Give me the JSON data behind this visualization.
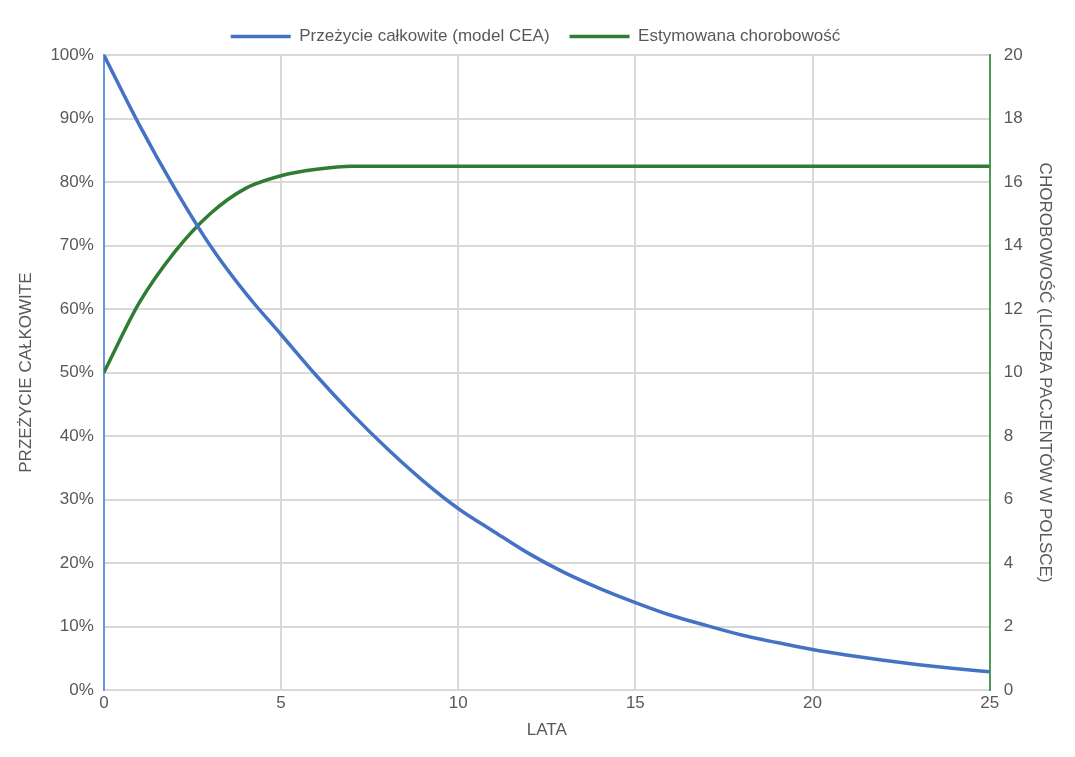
{
  "chart_data": {
    "type": "line",
    "xlabel": "LATA",
    "ylabel": "PRZEŻYCIE CAŁKOWITE",
    "y2label": "CHOROBOWOŚĆ (LICZBA PACJENTÓW W POLSCE)",
    "x": [
      0,
      1,
      2,
      3,
      4,
      5,
      6,
      7,
      8,
      9,
      10,
      11,
      12,
      13,
      14,
      15,
      16,
      17,
      18,
      19,
      20,
      21,
      22,
      23,
      24,
      25
    ],
    "series": [
      {
        "name": "Przeżycie całkowite (model CEA)",
        "color": "#4472c4",
        "values": [
          100,
          89,
          79,
          70,
          62.5,
          56,
          49.5,
          43.5,
          38,
          33,
          28.6,
          25,
          21.5,
          18.5,
          16,
          13.8,
          11.8,
          10.2,
          8.7,
          7.5,
          6.4,
          5.5,
          4.7,
          4,
          3.4,
          2.9
        ]
      },
      {
        "name": "Estymowana chorobowość",
        "color": "#2e7d32",
        "axis": "y2",
        "values": [
          10,
          12.2,
          13.8,
          15,
          15.8,
          16.2,
          16.4,
          16.5,
          16.5,
          16.5,
          16.5,
          16.5,
          16.5,
          16.5,
          16.5,
          16.5,
          16.5,
          16.5,
          16.5,
          16.5,
          16.5,
          16.5,
          16.5,
          16.5,
          16.5,
          16.5
        ]
      }
    ],
    "xlim": [
      0,
      25
    ],
    "xticks": [
      0,
      5,
      10,
      15,
      20,
      25
    ],
    "ylim": [
      0,
      100
    ],
    "yticks": [
      {
        "value": 0,
        "label": "0%"
      },
      {
        "value": 10,
        "label": "10%"
      },
      {
        "value": 20,
        "label": "20%"
      },
      {
        "value": 30,
        "label": "30%"
      },
      {
        "value": 40,
        "label": "40%"
      },
      {
        "value": 50,
        "label": "50%"
      },
      {
        "value": 60,
        "label": "60%"
      },
      {
        "value": 70,
        "label": "70%"
      },
      {
        "value": 80,
        "label": "80%"
      },
      {
        "value": 90,
        "label": "90%"
      },
      {
        "value": 100,
        "label": "100%"
      }
    ],
    "y2lim": [
      0,
      20
    ],
    "y2ticks": [
      0,
      2,
      4,
      6,
      8,
      10,
      12,
      14,
      16,
      18,
      20
    ],
    "grid": true,
    "legend": "top",
    "marker": "none",
    "line_style": "solid"
  }
}
